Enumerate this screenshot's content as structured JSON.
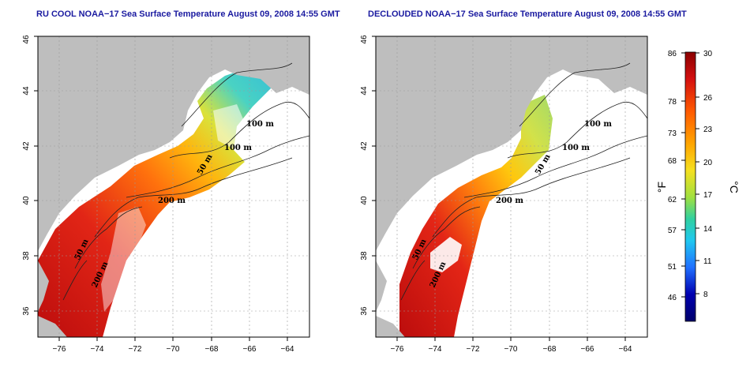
{
  "maps": [
    {
      "id": "left",
      "title": "RU COOL NOAA−17 Sea Surface Temperature August 09, 2008 14:55 GMT",
      "contour_labels": [
        "100 m",
        "100 m",
        "50 m",
        "200 m",
        "50 m",
        "200 m"
      ]
    },
    {
      "id": "right",
      "title": "DECLOUDED NOAA−17 Sea Surface Temperature August 09, 2008 14:55 GMT",
      "contour_labels": [
        "100 m",
        "100 m",
        "50 m",
        "200 m",
        "50 m",
        "200 m"
      ]
    }
  ],
  "axes": {
    "lon_ticks": [
      "−76",
      "−74",
      "−72",
      "−70",
      "−68",
      "−66",
      "−64"
    ],
    "lat_ticks": [
      "36",
      "38",
      "40",
      "42",
      "44",
      "46"
    ]
  },
  "colorbar": {
    "fahrenheit_unit": "°F",
    "celsius_unit": "°C",
    "fahrenheit_ticks": [
      "86",
      "78",
      "73",
      "68",
      "62",
      "57",
      "51",
      "46"
    ],
    "celsius_ticks": [
      "30",
      "26",
      "23",
      "20",
      "17",
      "14",
      "11",
      "8"
    ],
    "colors": [
      "#8b0000",
      "#d41010",
      "#ff5a00",
      "#ffa500",
      "#f5e020",
      "#a0e040",
      "#30d0a0",
      "#20c8f0",
      "#2070ff",
      "#0000b0",
      "#00006a"
    ]
  }
}
